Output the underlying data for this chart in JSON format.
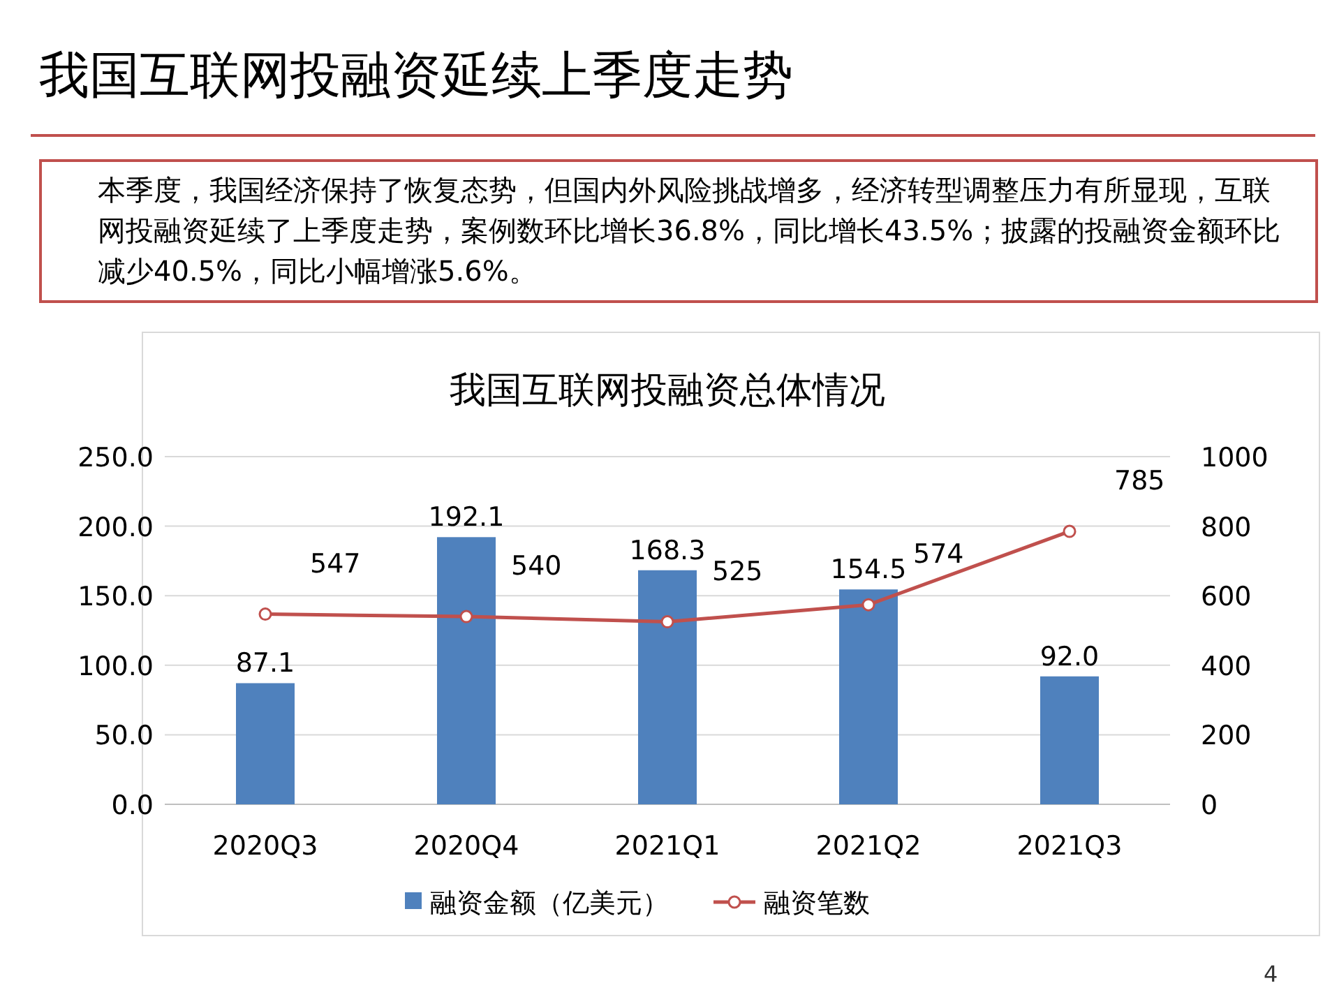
{
  "chart_data": {
    "type": "bar",
    "title": "我国互联网投融资总体情况",
    "annotations": [
      "我国互联网投融资延续上季度走势",
      "本季度，我国经济保持了恢复态势，但国内外风险挑战增多，经济转型调整压力有所显现，互联网投融资延续了上季度走势，案例数环比增长36.8%，同比增长43.5%；披露的投融资金额环比减少40.5%，同比小幅增涨5.6%。",
      "4"
    ],
    "categories": [
      "2020Q3",
      "2020Q4",
      "2021Q1",
      "2021Q2",
      "2021Q3"
    ],
    "series": [
      {
        "name": "融资金额（亿美元）",
        "color": "#4f81bd",
        "values": [
          87.1,
          192.1,
          168.3,
          154.5,
          92.0
        ],
        "value_labels": [
          "87.1",
          "192.1",
          "168.3",
          "154.5",
          "92.0"
        ]
      },
      {
        "name": "融资笔数",
        "type": "line",
        "axis": "y2",
        "color": "#c0504d",
        "marker": "circle",
        "values": [
          547,
          540,
          525,
          574,
          785
        ],
        "value_labels": [
          "547",
          "540",
          "525",
          "574",
          "785"
        ]
      }
    ],
    "ylim": [
      0,
      250
    ],
    "yticks": [
      {
        "value": 0,
        "label": "0.0"
      },
      {
        "value": 50,
        "label": "50.0"
      },
      {
        "value": 100,
        "label": "100.0"
      },
      {
        "value": 150,
        "label": "150.0"
      },
      {
        "value": 200,
        "label": "200.0"
      },
      {
        "value": 250,
        "label": "250.0"
      }
    ],
    "y2lim": [
      0,
      1000
    ],
    "y2ticks": [
      0,
      200,
      400,
      600,
      800,
      1000
    ],
    "grid": "y",
    "legend": "bottom"
  }
}
